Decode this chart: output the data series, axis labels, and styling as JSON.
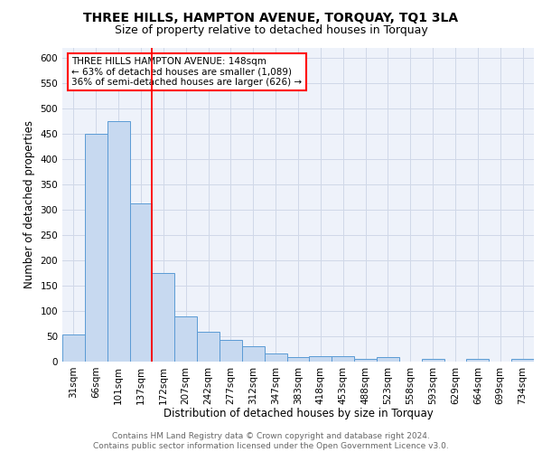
{
  "title": "THREE HILLS, HAMPTON AVENUE, TORQUAY, TQ1 3LA",
  "subtitle": "Size of property relative to detached houses in Torquay",
  "xlabel": "Distribution of detached houses by size in Torquay",
  "ylabel": "Number of detached properties",
  "categories": [
    "31sqm",
    "66sqm",
    "101sqm",
    "137sqm",
    "172sqm",
    "207sqm",
    "242sqm",
    "277sqm",
    "312sqm",
    "347sqm",
    "383sqm",
    "418sqm",
    "453sqm",
    "488sqm",
    "523sqm",
    "558sqm",
    "593sqm",
    "629sqm",
    "664sqm",
    "699sqm",
    "734sqm"
  ],
  "values": [
    53,
    450,
    475,
    312,
    175,
    90,
    58,
    43,
    30,
    16,
    9,
    10,
    10,
    5,
    9,
    0,
    5,
    0,
    6,
    0,
    5
  ],
  "bar_color": "#c7d9f0",
  "bar_edge_color": "#5b9bd5",
  "grid_color": "#d0d8e8",
  "background_color": "#eef2fa",
  "red_line_x": 3.5,
  "annotation_text": "THREE HILLS HAMPTON AVENUE: 148sqm\n← 63% of detached houses are smaller (1,089)\n36% of semi-detached houses are larger (626) →",
  "ylim": [
    0,
    620
  ],
  "yticks": [
    0,
    50,
    100,
    150,
    200,
    250,
    300,
    350,
    400,
    450,
    500,
    550,
    600
  ],
  "footnote": "Contains HM Land Registry data © Crown copyright and database right 2024.\nContains public sector information licensed under the Open Government Licence v3.0.",
  "title_fontsize": 10,
  "subtitle_fontsize": 9,
  "xlabel_fontsize": 8.5,
  "ylabel_fontsize": 8.5,
  "tick_fontsize": 7.5,
  "annotation_fontsize": 7.5,
  "footnote_fontsize": 6.5
}
